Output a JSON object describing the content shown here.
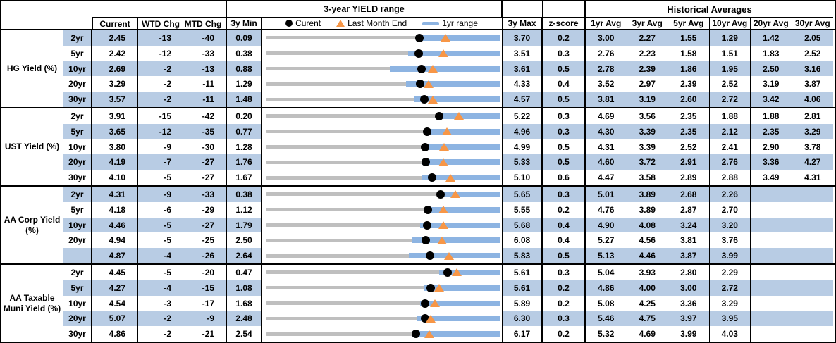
{
  "table": {
    "header_groups": {
      "yield_range_title": "3-year YIELD range",
      "historical_averages_title": "Historical Averages"
    },
    "columns": {
      "current": "Current",
      "wtd_chg": "WTD Chg",
      "mtd_chg": "MTD Chg",
      "min_3y": "3y Min",
      "max_3y": "3y Max",
      "z_score": "z-score",
      "avg_headers": [
        "1yr Avg",
        "3yr Avg",
        "5yr Avg",
        "10yr Avg",
        "20yr Avg",
        "30yr Avg"
      ]
    },
    "legend": {
      "current": "Curent",
      "last_month_end": "Last Month End",
      "range_1yr": "1yr range"
    }
  },
  "colors": {
    "row_shade": "#B8CCE4",
    "bar_blue": "#8DB4E2",
    "track_gray": "#BFBFBF",
    "triangle_orange": "#F79646",
    "dot_black": "#000000",
    "border_black": "#000000"
  },
  "chart_data": {
    "type": "table",
    "description": "Yield table with embedded 3-year range charts; track spans 3y Min to 3y Max, blue bar is 1yr range, black dot is current yield, orange triangle is last month end yield",
    "sections": [
      {
        "label": "HG Yield (%)",
        "rows": [
          {
            "tenor": "2yr",
            "current": "2.45",
            "wtd": "-13",
            "mtd": "-40",
            "min3y": "0.09",
            "max3y": "3.70",
            "z": "0.2",
            "avgs": [
              "3.00",
              "2.27",
              "1.55",
              "1.29",
              "1.42",
              "2.05"
            ],
            "range_1yr_low": 2.4,
            "range_1yr_high": 3.7,
            "last_month_end": 2.85
          },
          {
            "tenor": "5yr",
            "current": "2.42",
            "wtd": "-12",
            "mtd": "-33",
            "min3y": "0.38",
            "max3y": "3.51",
            "z": "0.3",
            "avgs": [
              "2.76",
              "2.23",
              "1.58",
              "1.51",
              "1.83",
              "2.52"
            ],
            "range_1yr_low": 2.28,
            "range_1yr_high": 3.51,
            "last_month_end": 2.75
          },
          {
            "tenor": "10yr",
            "current": "2.69",
            "wtd": "-2",
            "mtd": "-13",
            "min3y": "0.88",
            "max3y": "3.61",
            "z": "0.5",
            "avgs": [
              "2.78",
              "2.39",
              "1.86",
              "1.95",
              "2.50",
              "3.16"
            ],
            "range_1yr_low": 2.32,
            "range_1yr_high": 3.61,
            "last_month_end": 2.82
          },
          {
            "tenor": "20yr",
            "current": "3.29",
            "wtd": "-2",
            "mtd": "-11",
            "min3y": "1.29",
            "max3y": "4.33",
            "z": "0.4",
            "avgs": [
              "3.52",
              "2.97",
              "2.39",
              "2.52",
              "3.19",
              "3.87"
            ],
            "range_1yr_low": 3.11,
            "range_1yr_high": 4.33,
            "last_month_end": 3.4
          },
          {
            "tenor": "30yr",
            "current": "3.57",
            "wtd": "-2",
            "mtd": "-11",
            "min3y": "1.48",
            "max3y": "4.57",
            "z": "0.5",
            "avgs": [
              "3.81",
              "3.19",
              "2.60",
              "2.72",
              "3.42",
              "4.06"
            ],
            "range_1yr_low": 3.43,
            "range_1yr_high": 4.57,
            "last_month_end": 3.68
          }
        ]
      },
      {
        "label": "UST Yield (%)",
        "rows": [
          {
            "tenor": "2yr",
            "current": "3.91",
            "wtd": "-15",
            "mtd": "-42",
            "min3y": "0.20",
            "max3y": "5.22",
            "z": "0.3",
            "avgs": [
              "4.69",
              "3.56",
              "2.35",
              "1.88",
              "1.88",
              "2.81"
            ],
            "range_1yr_low": 3.85,
            "range_1yr_high": 5.22,
            "last_month_end": 4.33
          },
          {
            "tenor": "5yr",
            "current": "3.65",
            "wtd": "-12",
            "mtd": "-35",
            "min3y": "0.77",
            "max3y": "4.96",
            "z": "0.3",
            "avgs": [
              "4.30",
              "3.39",
              "2.35",
              "2.12",
              "2.35",
              "3.29"
            ],
            "range_1yr_low": 3.63,
            "range_1yr_high": 4.96,
            "last_month_end": 4.0
          },
          {
            "tenor": "10yr",
            "current": "3.80",
            "wtd": "-9",
            "mtd": "-30",
            "min3y": "1.28",
            "max3y": "4.99",
            "z": "0.5",
            "avgs": [
              "4.31",
              "3.39",
              "2.52",
              "2.41",
              "2.90",
              "3.78"
            ],
            "range_1yr_low": 3.78,
            "range_1yr_high": 4.99,
            "last_month_end": 4.1
          },
          {
            "tenor": "20yr",
            "current": "4.19",
            "wtd": "-7",
            "mtd": "-27",
            "min3y": "1.76",
            "max3y": "5.33",
            "z": "0.5",
            "avgs": [
              "4.60",
              "3.72",
              "2.91",
              "2.76",
              "3.36",
              "4.27"
            ],
            "range_1yr_low": 4.13,
            "range_1yr_high": 5.33,
            "last_month_end": 4.46
          },
          {
            "tenor": "30yr",
            "current": "4.10",
            "wtd": "-5",
            "mtd": "-27",
            "min3y": "1.67",
            "max3y": "5.10",
            "z": "0.6",
            "avgs": [
              "4.47",
              "3.58",
              "2.89",
              "2.88",
              "3.49",
              "4.31"
            ],
            "range_1yr_low": 3.96,
            "range_1yr_high": 5.1,
            "last_month_end": 4.37
          }
        ]
      },
      {
        "label": "AA Corp Yield (%)",
        "rows": [
          {
            "tenor": "2yr",
            "current": "4.31",
            "wtd": "-9",
            "mtd": "-33",
            "min3y": "0.38",
            "max3y": "5.65",
            "z": "0.3",
            "avgs": [
              "5.01",
              "3.89",
              "2.68",
              "2.26",
              "",
              ""
            ],
            "range_1yr_low": 4.22,
            "range_1yr_high": 5.65,
            "last_month_end": 4.64
          },
          {
            "tenor": "5yr",
            "current": "4.18",
            "wtd": "-6",
            "mtd": "-29",
            "min3y": "1.12",
            "max3y": "5.55",
            "z": "0.2",
            "avgs": [
              "4.76",
              "3.89",
              "2.87",
              "2.70",
              "",
              ""
            ],
            "range_1yr_low": 4.14,
            "range_1yr_high": 5.55,
            "last_month_end": 4.47
          },
          {
            "tenor": "10yr",
            "current": "4.46",
            "wtd": "-5",
            "mtd": "-27",
            "min3y": "1.79",
            "max3y": "5.68",
            "z": "0.4",
            "avgs": [
              "4.90",
              "4.08",
              "3.24",
              "3.20",
              "",
              ""
            ],
            "range_1yr_low": 4.35,
            "range_1yr_high": 5.68,
            "last_month_end": 4.73
          },
          {
            "tenor": "20yr",
            "current": "4.94",
            "wtd": "-5",
            "mtd": "-25",
            "min3y": "2.50",
            "max3y": "6.08",
            "z": "0.4",
            "avgs": [
              "5.27",
              "4.56",
              "3.81",
              "3.76",
              "",
              ""
            ],
            "range_1yr_low": 4.73,
            "range_1yr_high": 6.08,
            "last_month_end": 5.19
          },
          {
            "tenor": "",
            "current": "4.87",
            "wtd": "-4",
            "mtd": "-26",
            "min3y": "2.64",
            "max3y": "5.83",
            "z": "0.5",
            "avgs": [
              "5.13",
              "4.46",
              "3.87",
              "3.99",
              "",
              ""
            ],
            "range_1yr_low": 4.58,
            "range_1yr_high": 5.83,
            "last_month_end": 5.13
          }
        ]
      },
      {
        "label": "AA Taxable Muni Yield (%)",
        "rows": [
          {
            "tenor": "2yr",
            "current": "4.45",
            "wtd": "-5",
            "mtd": "-20",
            "min3y": "0.47",
            "max3y": "5.61",
            "z": "0.3",
            "avgs": [
              "5.04",
              "3.93",
              "2.80",
              "2.29",
              "",
              ""
            ],
            "range_1yr_low": 4.27,
            "range_1yr_high": 5.61,
            "last_month_end": 4.65
          },
          {
            "tenor": "5yr",
            "current": "4.27",
            "wtd": "-4",
            "mtd": "-15",
            "min3y": "1.08",
            "max3y": "5.61",
            "z": "0.2",
            "avgs": [
              "4.86",
              "4.00",
              "3.00",
              "2.72",
              "",
              ""
            ],
            "range_1yr_low": 4.14,
            "range_1yr_high": 5.61,
            "last_month_end": 4.42
          },
          {
            "tenor": "10yr",
            "current": "4.54",
            "wtd": "-3",
            "mtd": "-17",
            "min3y": "1.68",
            "max3y": "5.89",
            "z": "0.2",
            "avgs": [
              "5.08",
              "4.25",
              "3.36",
              "3.29",
              "",
              ""
            ],
            "range_1yr_low": 4.45,
            "range_1yr_high": 5.89,
            "last_month_end": 4.71
          },
          {
            "tenor": "20yr",
            "current": "5.07",
            "wtd": "-2",
            "mtd": "-9",
            "min3y": "2.48",
            "max3y": "6.30",
            "z": "0.3",
            "avgs": [
              "5.46",
              "4.75",
              "3.97",
              "3.95",
              "",
              ""
            ],
            "range_1yr_low": 4.94,
            "range_1yr_high": 6.3,
            "last_month_end": 5.16
          },
          {
            "tenor": "30yr",
            "current": "4.86",
            "wtd": "-2",
            "mtd": "-21",
            "min3y": "2.54",
            "max3y": "6.17",
            "z": "0.2",
            "avgs": [
              "5.32",
              "4.69",
              "3.99",
              "4.03",
              "",
              ""
            ],
            "range_1yr_low": 4.81,
            "range_1yr_high": 6.17,
            "last_month_end": 5.07
          }
        ]
      }
    ]
  }
}
